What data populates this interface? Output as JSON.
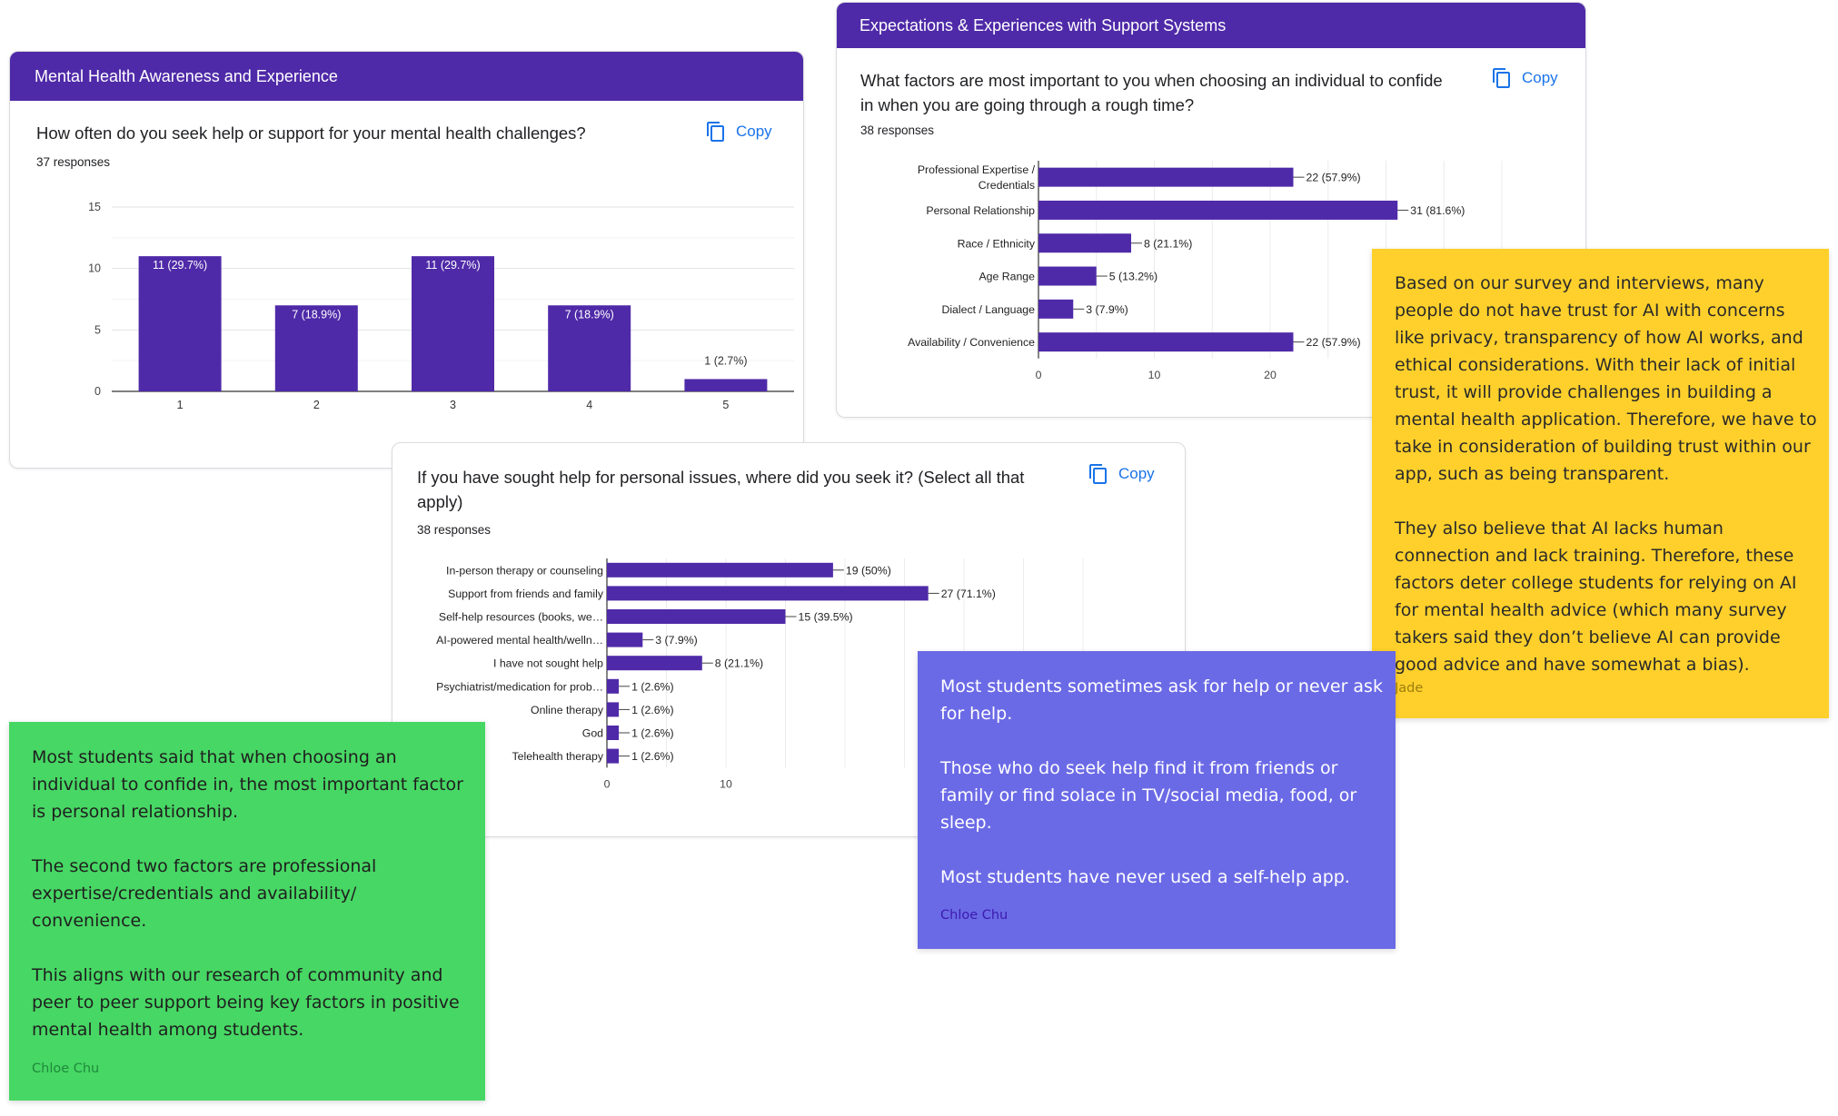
{
  "card1": {
    "header": "Mental Health Awareness and Experience",
    "question": "How often do you seek help or support for your mental health challenges?",
    "responses": "37 responses",
    "copy_label": "Copy"
  },
  "card2": {
    "header": "Expectations & Experiences with Support Systems",
    "question": "What factors are most important to you when choosing an individual to confide in when you are going through a rough time?",
    "responses": "38 responses",
    "copy_label": "Copy"
  },
  "card3": {
    "question": "If you have sought help for personal issues, where did you seek it? (Select all that apply)",
    "responses": "38 responses",
    "copy_label": "Copy"
  },
  "notes": {
    "yellow": {
      "paragraphs": [
        "Based on our survey and interviews, many people do not have trust for AI with concerns like privacy, transparency of how AI works, and ethical considerations. With their lack of initial trust, it will provide challenges in building a mental health application. Therefore, we have to take in consideration of building trust within our app, such as being transparent.",
        "They also believe that AI lacks human connection and lack training. Therefore, these factors deter college students for relying on AI for mental health advice (which many survey takers said they don’t believe AI can provide good advice and have somewhat a bias)."
      ],
      "author": "Jade",
      "color": "#ffd02b"
    },
    "purple": {
      "paragraphs": [
        "Most students sometimes ask for help or never ask for help.",
        "Those who do seek help find it from friends or family or find solace in TV/social media, food, or sleep.",
        "Most students have never used a self-help app."
      ],
      "author": "Chloe Chu",
      "color": "#6b6ae6"
    },
    "green": {
      "paragraphs": [
        "Most students said that when choosing an individual to confide in, the most important factor is personal relationship.",
        "The second two factors are professional expertise/credentials and availability/ convenience.",
        "This aligns with our research of community and peer to peer support being key factors in positive mental health among students."
      ],
      "author": "Chloe Chu",
      "color": "#47d764"
    }
  },
  "chart_data": [
    {
      "type": "bar",
      "title": "How often do you seek help or support for your mental health challenges?",
      "categories": [
        "1",
        "2",
        "3",
        "4",
        "5"
      ],
      "values": [
        11,
        7,
        11,
        7,
        1
      ],
      "labels": [
        "11 (29.7%)",
        "7 (18.9%)",
        "11 (29.7%)",
        "7 (18.9%)",
        "1 (2.7%)"
      ],
      "ylim": [
        0,
        15
      ],
      "yticks": [
        0,
        5,
        10,
        15
      ],
      "color": "#4f2aa8"
    },
    {
      "type": "bar",
      "orientation": "horizontal",
      "title": "What factors are most important to you when choosing an individual to confide in when you are going through a rough time?",
      "categories": [
        [
          "Professional Expertise /",
          "Credentials"
        ],
        [
          "Personal Relationship"
        ],
        [
          "Race / Ethnicity"
        ],
        [
          "Age Range"
        ],
        [
          "Dialect / Language"
        ],
        [
          "Availability / Convenience"
        ]
      ],
      "values": [
        22,
        31,
        8,
        5,
        3,
        22
      ],
      "labels": [
        "22 (57.9%)",
        "31 (81.6%)",
        "8 (21.1%)",
        "5 (13.2%)",
        "3 (7.9%)",
        "22 (57.9%)"
      ],
      "xticks": [
        0,
        10,
        20
      ],
      "color": "#4f2aa8"
    },
    {
      "type": "bar",
      "orientation": "horizontal",
      "title": "If you have sought help for personal issues, where did you seek it? (Select all that apply)",
      "categories": [
        [
          "In-person therapy or counseling"
        ],
        [
          "Support from friends and family"
        ],
        [
          "Self-help resources (books, we…"
        ],
        [
          "AI-powered mental health/welln…"
        ],
        [
          "I have not sought help"
        ],
        [
          "Psychiatrist/medication for prob…"
        ],
        [
          "Online therapy"
        ],
        [
          "God"
        ],
        [
          "Telehealth therapy"
        ]
      ],
      "values": [
        19,
        27,
        15,
        3,
        8,
        1,
        1,
        1,
        1
      ],
      "labels": [
        "19 (50%)",
        "27 (71.1%)",
        "15 (39.5%)",
        "3 (7.9%)",
        "8 (21.1%)",
        "1 (2.6%)",
        "1 (2.6%)",
        "1 (2.6%)",
        "1 (2.6%)"
      ],
      "xticks": [
        0,
        10
      ],
      "color": "#4f2aa8"
    }
  ]
}
